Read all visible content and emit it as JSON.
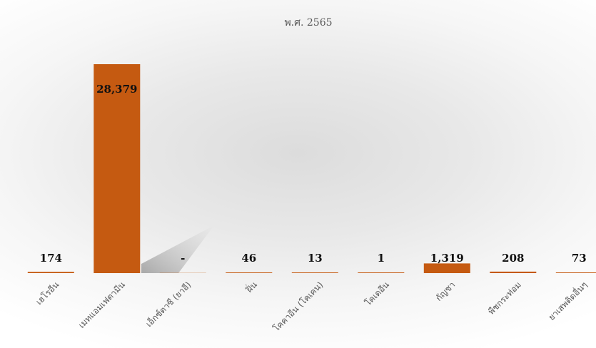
{
  "chart_data": {
    "type": "bar",
    "title": "",
    "subtitle": "พ.ศ. 2565",
    "xlabel": "",
    "ylabel": "",
    "ylim": [
      0,
      28379
    ],
    "grid": false,
    "legend": "none",
    "bar_color": "#c55a11",
    "categories": [
      "เฮโรอีน",
      "เมทแอมเฟตามีน",
      "เอ็กซ์ตาซี (ยาอี)",
      "ฝิ่น",
      "โคคาอีน (โคเคน)",
      "โคเดอีน",
      "กัญชา",
      "พืชกระท่อม",
      "ยาเสพติดอื่นๆ"
    ],
    "values": [
      174,
      28379,
      0,
      46,
      13,
      1,
      1319,
      208,
      73
    ],
    "data_labels": [
      "174",
      "28,379",
      "-",
      "46",
      "13",
      "1",
      "1,319",
      "208",
      "73"
    ]
  }
}
